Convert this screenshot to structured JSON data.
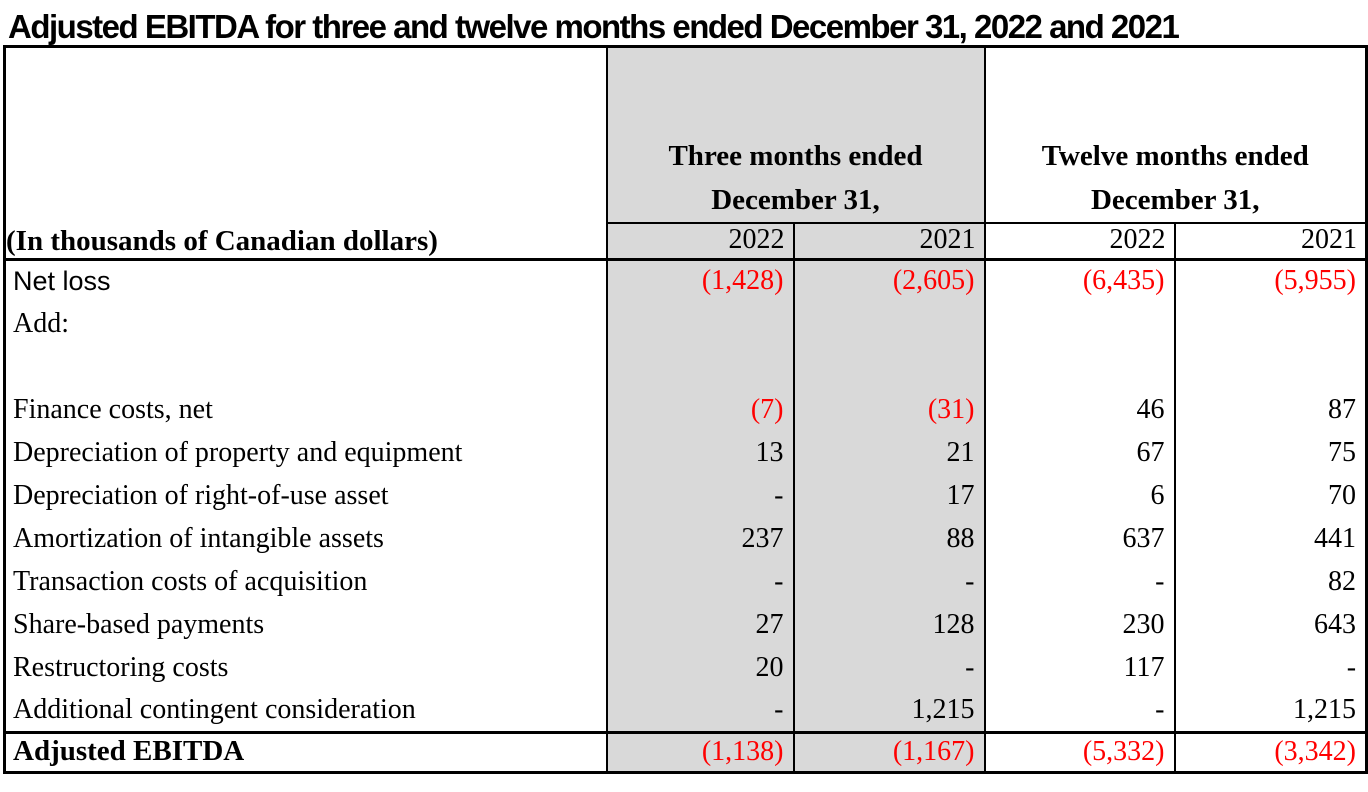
{
  "title": "Adjusted EBITDA for three and twelve months ended December 31, 2022 and 2021",
  "table": {
    "corner_label": "(In thousands of Canadian dollars)",
    "col_groups": [
      {
        "line1": "Three months ended",
        "line2": "December 31,",
        "shaded": true
      },
      {
        "line1": "Twelve months ended",
        "line2": "December 31,",
        "shaded": false
      }
    ],
    "year_headers": [
      "2022",
      "2021",
      "2022",
      "2021"
    ],
    "rows": [
      {
        "label": "Net loss",
        "values": [
          "(1,428)",
          "(2,605)",
          "(6,435)",
          "(5,955)"
        ]
      },
      {
        "label": "Add:",
        "values": [
          "",
          "",
          "",
          ""
        ]
      },
      {
        "label": "",
        "values": [
          "",
          "",
          "",
          ""
        ]
      },
      {
        "label": "Finance costs, net",
        "values": [
          "(7)",
          "(31)",
          "46",
          "87"
        ]
      },
      {
        "label": "Depreciation of property and equipment",
        "values": [
          "13",
          "21",
          "67",
          "75"
        ]
      },
      {
        "label": "Depreciation of right-of-use asset",
        "values": [
          "-",
          "17",
          "6",
          "70"
        ]
      },
      {
        "label": "Amortization of intangible assets",
        "values": [
          "237",
          "88",
          "637",
          "441"
        ]
      },
      {
        "label": "Transaction costs of acquisition",
        "values": [
          "-",
          "-",
          "-",
          "82"
        ]
      },
      {
        "label": "Share-based payments",
        "values": [
          "27",
          "128",
          "230",
          "643"
        ]
      },
      {
        "label": "Restructoring costs",
        "values": [
          "20",
          "-",
          "117",
          "-"
        ]
      },
      {
        "label": "Additional contingent consideration",
        "values": [
          "-",
          "1,215",
          "-",
          "1,215"
        ]
      }
    ],
    "total_row": {
      "label": "Adjusted EBITDA",
      "values": [
        "(1,138)",
        "(1,167)",
        "(5,332)",
        "(3,342)"
      ]
    }
  },
  "colors": {
    "negative_text": "#FF0000",
    "shaded_column": "#D9D9D9",
    "border": "#000000"
  }
}
